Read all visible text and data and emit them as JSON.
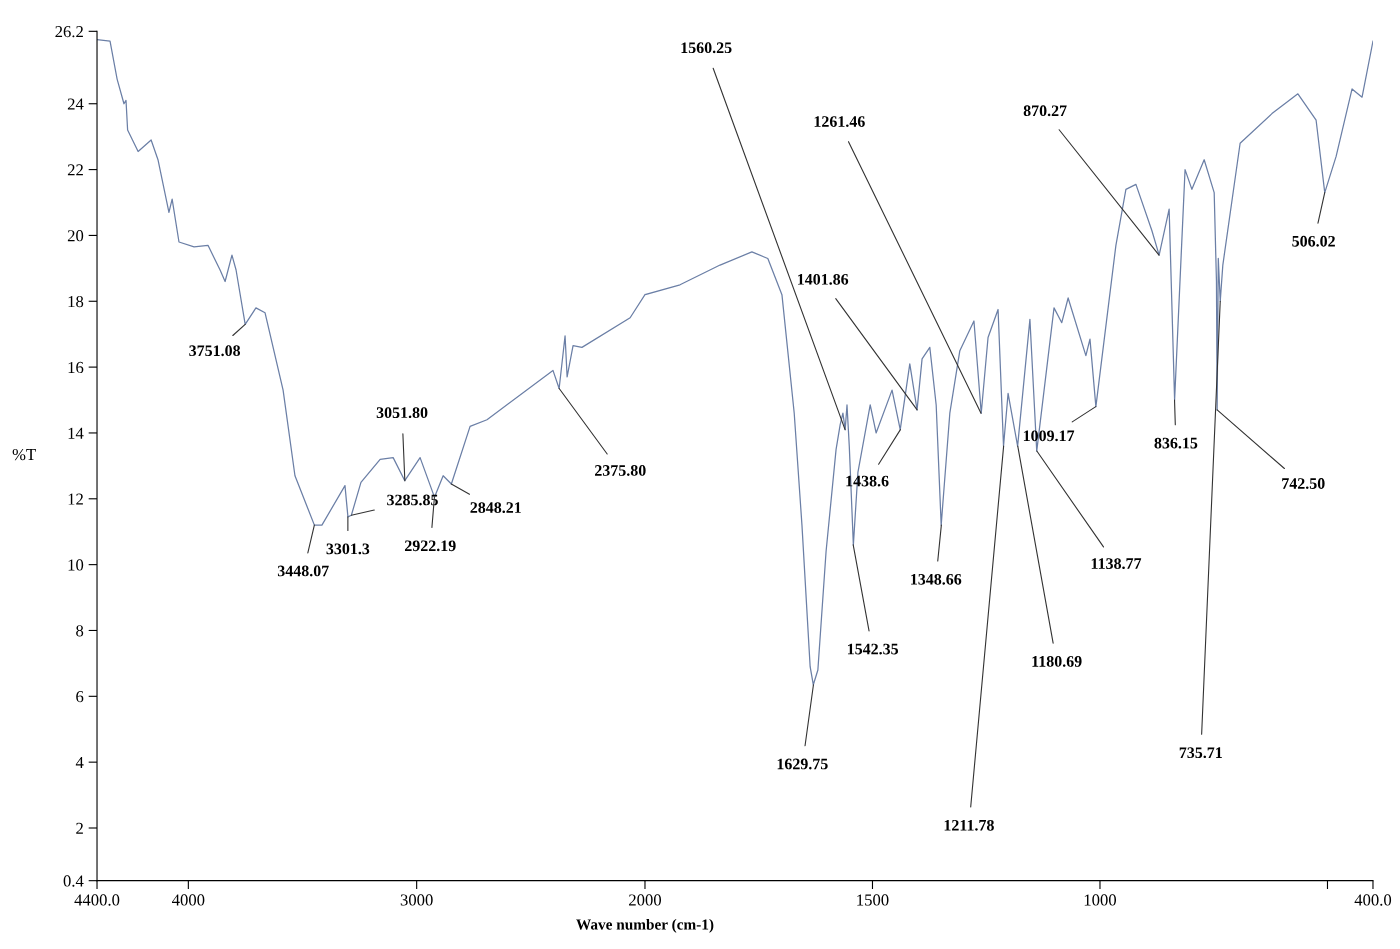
{
  "chart_data": [
    {
      "type": "line",
      "ylabel": "%T",
      "xlim": [
        4400,
        2000
      ],
      "ylim": [
        0.4,
        26.2
      ],
      "xticks": [
        {
          "value": 4400,
          "label": "4400.0"
        },
        4000,
        3000,
        2000
      ],
      "yticks": [
        0.4,
        2,
        4,
        6,
        8,
        10,
        12,
        14,
        16,
        18,
        20,
        22,
        24,
        26.2
      ],
      "grid": false,
      "marker": "none",
      "line_style": "solid",
      "series": [
        {
          "color": "#6b7fa6",
          "x": [
            4400,
            4343,
            4312,
            4282,
            4273,
            4266,
            4220,
            4163,
            4133,
            4085,
            4071,
            4041,
            3975,
            3914,
            3861,
            3839,
            3809,
            3791,
            3751,
            3704,
            3664,
            3585,
            3533,
            3448,
            3415,
            3314,
            3301,
            3286,
            3244,
            3160,
            3103,
            3052,
            2985,
            2922,
            2884,
            2848,
            2766,
            2692,
            2403,
            2376,
            2350,
            2341,
            2315,
            2276,
            2065,
            2000
          ],
          "values": [
            25.95,
            25.9,
            24.75,
            24.0,
            24.1,
            23.2,
            22.55,
            22.9,
            22.3,
            20.7,
            21.1,
            19.8,
            19.65,
            19.7,
            18.95,
            18.6,
            19.4,
            18.95,
            17.3,
            17.8,
            17.65,
            15.3,
            12.7,
            11.2,
            11.2,
            12.4,
            11.45,
            11.5,
            12.5,
            13.2,
            13.25,
            12.55,
            13.25,
            12.05,
            12.7,
            12.45,
            14.2,
            14.4,
            15.9,
            15.35,
            16.95,
            15.7,
            16.65,
            16.6,
            17.5,
            18.2
          ]
        }
      ],
      "annotations": [
        {
          "text": "3751.08",
          "x": 3751.08,
          "y": 17.3
        },
        {
          "text": "3448.07",
          "x": 3448.07,
          "y": 11.2
        },
        {
          "text": "3301.3",
          "x": 3301.3,
          "y": 11.45
        },
        {
          "text": "3285.85",
          "x": 3285.85,
          "y": 11.5
        },
        {
          "text": "3051.80",
          "x": 3051.8,
          "y": 12.55
        },
        {
          "text": "2922.19",
          "x": 2922.19,
          "y": 12.05
        },
        {
          "text": "2848.21",
          "x": 2848.21,
          "y": 12.45
        },
        {
          "text": "2375.80",
          "x": 2375.8,
          "y": 15.35
        }
      ]
    },
    {
      "type": "line",
      "xlabel": "Wave number (cm-1)",
      "xlim": [
        2000,
        400
      ],
      "ylim": [
        0.4,
        26.2
      ],
      "xticks": [
        1500,
        1000,
        {
          "value": 500,
          "label": null
        },
        {
          "value": 400,
          "label": "400.0"
        }
      ],
      "tick_labels": "x",
      "grid": false,
      "marker": "none",
      "line_style": "solid",
      "series": [
        {
          "color": "#6b7fa6",
          "x": [
            2000,
            1923,
            1835,
            1765,
            1730,
            1699,
            1672,
            1655,
            1637,
            1630,
            1620,
            1602,
            1580,
            1571,
            1565,
            1560,
            1556,
            1551,
            1542,
            1532,
            1505,
            1492,
            1457,
            1439,
            1418,
            1402,
            1391,
            1374,
            1360,
            1349,
            1330,
            1308,
            1277,
            1261,
            1246,
            1224,
            1212,
            1202,
            1181,
            1154,
            1139,
            1101,
            1084,
            1070,
            1031,
            1022,
            1009,
            965,
            943,
            921,
            886,
            870,
            848,
            836,
            813,
            798,
            771,
            749,
            744,
            742.5,
            740,
            735.7,
            730,
            692,
            622,
            565,
            525,
            506,
            481,
            446,
            424,
            400
          ],
          "values": [
            18.2,
            18.5,
            19.1,
            19.5,
            19.3,
            18.2,
            14.6,
            11.2,
            6.9,
            6.35,
            6.8,
            10.4,
            13.5,
            14.25,
            14.6,
            14.1,
            14.85,
            13.6,
            10.6,
            12.8,
            14.85,
            14.0,
            15.3,
            14.1,
            16.1,
            14.7,
            16.25,
            16.6,
            14.85,
            11.2,
            14.6,
            16.5,
            17.4,
            14.6,
            16.9,
            17.75,
            13.6,
            15.2,
            13.6,
            17.45,
            13.45,
            17.8,
            17.35,
            18.1,
            16.35,
            16.85,
            14.8,
            19.7,
            21.4,
            21.55,
            20.15,
            19.4,
            20.8,
            15.0,
            22.0,
            21.4,
            22.3,
            21.3,
            18.6,
            14.7,
            19.3,
            18.0,
            19.1,
            22.8,
            23.7,
            24.3,
            23.5,
            21.3,
            22.4,
            24.45,
            24.2,
            25.9
          ]
        }
      ],
      "annotations": [
        {
          "text": "1560.25",
          "x": 1560.25,
          "y": 14.1
        },
        {
          "text": "1629.75",
          "x": 1629.75,
          "y": 6.35
        },
        {
          "text": "1542.35",
          "x": 1542.35,
          "y": 10.6
        },
        {
          "text": "1438.6",
          "x": 1438.6,
          "y": 14.1
        },
        {
          "text": "1401.86",
          "x": 1401.86,
          "y": 14.7
        },
        {
          "text": "1261.46",
          "x": 1261.46,
          "y": 14.6
        },
        {
          "text": "1348.66",
          "x": 1348.66,
          "y": 11.2
        },
        {
          "text": "1211.78",
          "x": 1211.78,
          "y": 13.6
        },
        {
          "text": "1180.69",
          "x": 1180.69,
          "y": 13.6
        },
        {
          "text": "1138.77",
          "x": 1138.77,
          "y": 13.45
        },
        {
          "text": "1009.17",
          "x": 1009.17,
          "y": 14.8
        },
        {
          "text": "870.27",
          "x": 870.27,
          "y": 19.4
        },
        {
          "text": "836.15",
          "x": 836.15,
          "y": 15.0
        },
        {
          "text": "735.71",
          "x": 735.71,
          "y": 18.0
        },
        {
          "text": "742.50",
          "x": 742.5,
          "y": 14.7
        },
        {
          "text": "506.02",
          "x": 506.02,
          "y": 21.3
        }
      ]
    }
  ]
}
